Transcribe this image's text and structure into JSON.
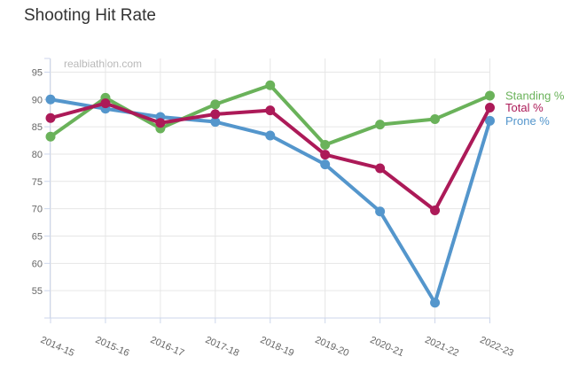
{
  "title": "Shooting Hit Rate",
  "watermark": "realbiathlon.com",
  "chart_data": {
    "type": "line",
    "categories": [
      "2014-15",
      "2015-16",
      "2016-17",
      "2017-18",
      "2018-19",
      "2019-20",
      "2020-21",
      "2021-22",
      "2022-23"
    ],
    "series": [
      {
        "name": "Standing %",
        "color": "#6ab25a",
        "values": [
          83.2,
          90.3,
          84.7,
          89.1,
          92.6,
          81.7,
          85.4,
          86.4,
          90.7
        ]
      },
      {
        "name": "Total %",
        "color": "#ac1a58",
        "values": [
          86.6,
          89.3,
          85.7,
          87.3,
          88.0,
          79.9,
          77.4,
          69.7,
          88.5
        ]
      },
      {
        "name": "Prone %",
        "color": "#5496cc",
        "values": [
          90.0,
          88.3,
          86.8,
          85.9,
          83.4,
          78.1,
          69.5,
          52.8,
          86.1
        ]
      }
    ],
    "yticks": [
      55,
      60,
      65,
      70,
      75,
      80,
      85,
      90,
      95
    ],
    "ylim": [
      50,
      97.5
    ],
    "grid": true,
    "legend_position": "right-end-of-lines",
    "colors": {
      "axis_line": "#ccd6eb",
      "grid_line": "#e6e6e6",
      "axis_label": "#666666",
      "title_text": "#333333",
      "watermark_text": "#b9b9b9"
    }
  }
}
